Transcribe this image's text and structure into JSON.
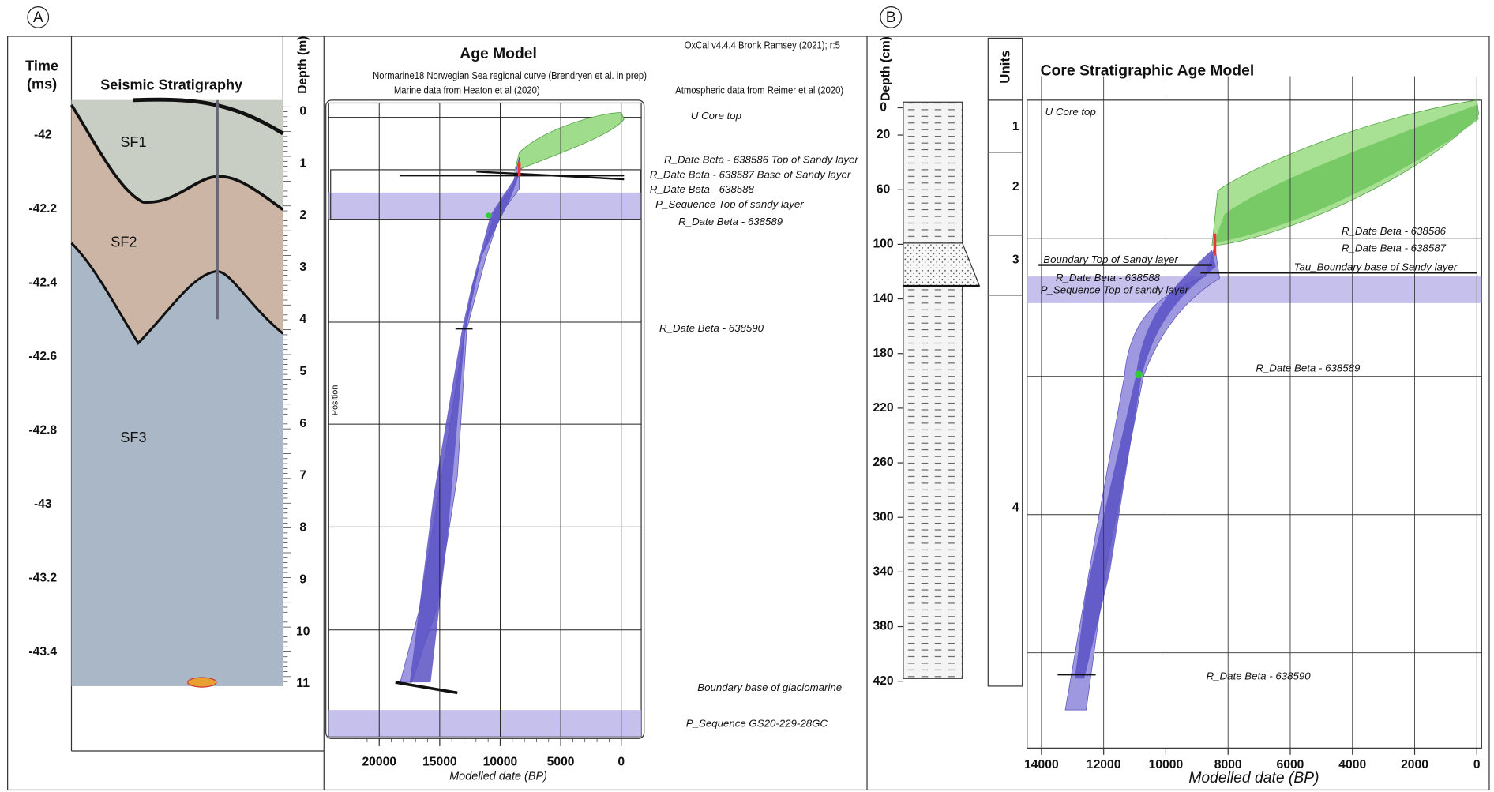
{
  "panel_a": {
    "label": "A",
    "time_axis": {
      "title_1": "Time",
      "title_2": "(ms)",
      "ticks": [
        -42,
        -42.2,
        -42.4,
        -42.6,
        -42.8,
        -43,
        -43.2,
        -43.4
      ]
    },
    "seismic": {
      "title": "Seismic Stratigraphy",
      "units": [
        "SF1",
        "SF2",
        "SF3"
      ]
    },
    "depth_axis": {
      "title": "Depth (m)",
      "ticks": [
        0,
        1,
        2,
        3,
        4,
        5,
        6,
        7,
        8,
        9,
        10,
        11
      ]
    },
    "age_model": {
      "title": "Age Model",
      "credits": [
        "OxCal v4.4.4 Bronk Ramsey (2021); r:5",
        "Normarine18 Norwegian Sea regional curve (Brendryen et al. in prep)",
        "Marine data from Heaton et al (2020)",
        "Atmospheric data from Reimer et al (2020)"
      ],
      "position_label": "Position",
      "x_label": "Modelled date (BP)",
      "x_ticks": [
        20000,
        15000,
        10000,
        5000,
        0
      ],
      "annotations": [
        "U Core top",
        "R_Date Beta - 638586 Top of Sandy layer",
        "R_Date Beta - 638587 Base of Sandy layer",
        "R_Date Beta - 638588",
        "P_Sequence Top of sandy layer",
        "R_Date Beta - 638589",
        "R_Date Beta - 638590",
        "Boundary base of glaciomarine",
        "P_Sequence GS20-229-28GC"
      ]
    }
  },
  "panel_b": {
    "label": "B",
    "depth_axis": {
      "title": "Depth (cm)",
      "ticks": [
        0,
        20,
        60,
        100,
        140,
        180,
        220,
        260,
        300,
        340,
        380,
        420
      ]
    },
    "units": {
      "title": "Units",
      "labels": [
        "1",
        "2",
        "3",
        "4"
      ]
    },
    "age_model": {
      "title": "Core Stratigraphic Age Model",
      "x_label": "Modelled date (BP)",
      "x_ticks": [
        14000,
        12000,
        10000,
        8000,
        6000,
        4000,
        2000,
        0
      ],
      "annotations": [
        "U Core top",
        "R_Date Beta - 638586",
        "R_Date Beta - 638587",
        "Boundary Top of Sandy layer",
        "Tau_Boundary base of Sandy layer",
        "R_Date Beta - 638588",
        "P_Sequence Top of sandy layer",
        "R_Date Beta - 638589",
        "R_Date Beta - 638590"
      ]
    }
  }
}
